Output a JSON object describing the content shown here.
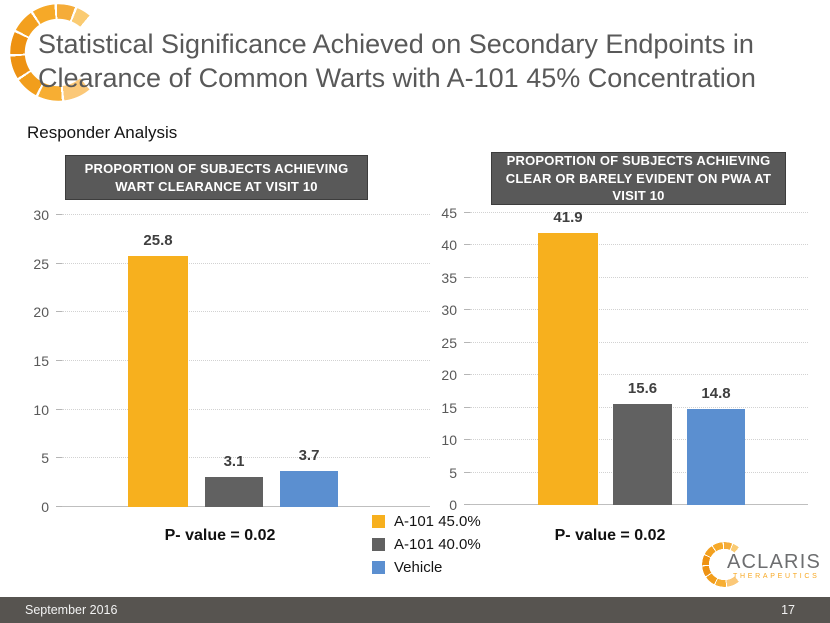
{
  "slide": {
    "title_line1": "Statistical Significance Achieved on Secondary Endpoints in",
    "title_line2": "Clearance of Common Warts with A-101 45% Concentration",
    "subtitle": "Responder Analysis",
    "footer_date": "September 2016",
    "page_number": "17"
  },
  "colors": {
    "accent_orange": "#F7B01E",
    "bar_gray": "#616161",
    "bar_blue": "#5B8FD0",
    "header_box_bg": "#595959",
    "title_text": "#595959",
    "footer_bg": "#575450"
  },
  "legend": {
    "items": [
      {
        "label": "A-101 45.0%",
        "color": "#F7B01E"
      },
      {
        "label": "A-101 40.0%",
        "color": "#616161"
      },
      {
        "label": "Vehicle",
        "color": "#5B8FD0"
      }
    ]
  },
  "logo": {
    "name": "ACLARIS",
    "subtext": "THERAPEUTICS",
    "mark": "segmented-orange-ring-icon"
  },
  "chart_data": [
    {
      "type": "bar",
      "title": "PROPORTION OF SUBJECTS ACHIEVING WART CLEARANCE AT VISIT 10",
      "categories": [
        "A-101 45.0%",
        "A-101 40.0%",
        "Vehicle"
      ],
      "values": [
        25.8,
        3.1,
        3.7
      ],
      "colors": [
        "#F7B01E",
        "#616161",
        "#5B8FD0"
      ],
      "ylim": [
        0,
        30
      ],
      "ytick_step": 5,
      "grid": true,
      "legend_position": "bottom-right-of-chart",
      "annotation": "P- value = 0.02"
    },
    {
      "type": "bar",
      "title": "PROPORTION OF SUBJECTS ACHIEVING CLEAR OR BARELY EVIDENT ON PWA AT VISIT 10",
      "categories": [
        "A-101 45.0%",
        "A-101 40.0%",
        "Vehicle"
      ],
      "values": [
        41.9,
        15.6,
        14.8
      ],
      "colors": [
        "#F7B01E",
        "#616161",
        "#5B8FD0"
      ],
      "ylim": [
        0,
        45
      ],
      "ytick_step": 5,
      "grid": true,
      "annotation": "P- value = 0.02"
    }
  ]
}
